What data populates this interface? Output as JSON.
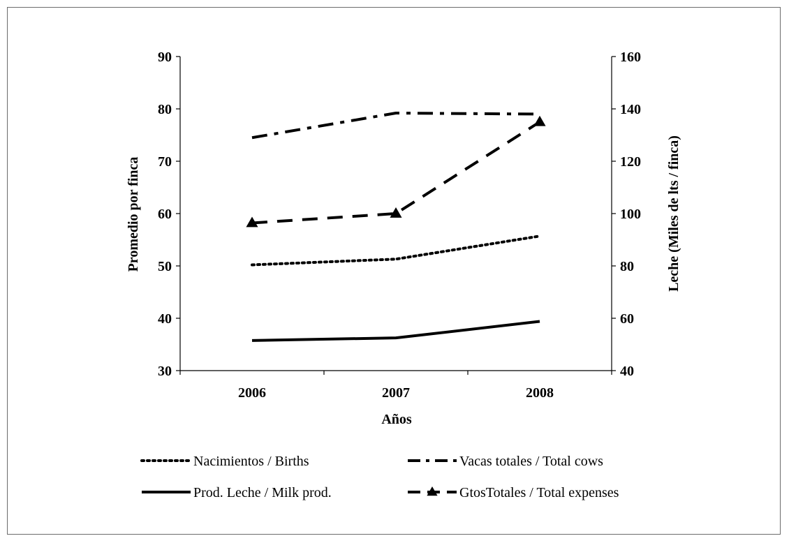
{
  "chart_data": {
    "type": "line",
    "categories": [
      "2006",
      "2007",
      "2008"
    ],
    "xlabel": "Años",
    "ylabel_left": "Promedio por finca",
    "ylabel_right": "Leche (Miles de lts / finca)",
    "ylim_left": [
      30,
      90
    ],
    "ylim_right": [
      40,
      160
    ],
    "yticks_left": [
      90,
      80,
      70,
      60,
      50,
      40,
      30
    ],
    "yticks_right": [
      160,
      140,
      120,
      100,
      80,
      60,
      40
    ],
    "grid": false,
    "legend_position": "bottom",
    "series": [
      {
        "name": "Nacimientos / Births",
        "axis": "left",
        "style": "dotted",
        "marker": "none",
        "values": [
          50.2,
          51.3,
          55.7
        ]
      },
      {
        "name": "Vacas totales / Total cows",
        "axis": "left",
        "style": "dashdot",
        "marker": "none",
        "values": [
          74.5,
          79.2,
          79.0
        ]
      },
      {
        "name": "Prod. Leche / Milk prod.",
        "axis": "right",
        "style": "solid",
        "marker": "none",
        "values": [
          51.5,
          52.5,
          58.8
        ]
      },
      {
        "name": "GtosTotales  / Total expenses",
        "axis": "left",
        "style": "dashed",
        "marker": "triangle",
        "values": [
          58.2,
          60.0,
          77.5
        ]
      }
    ]
  }
}
